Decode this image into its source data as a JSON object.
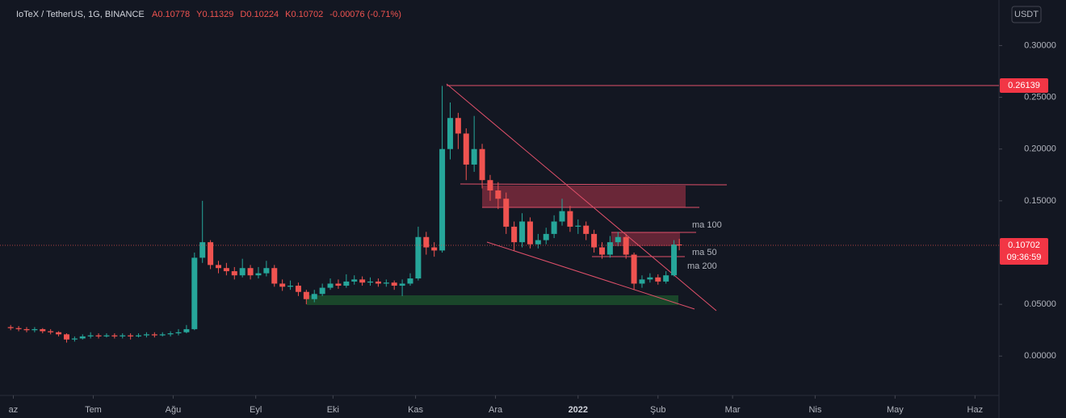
{
  "chart_data": {
    "type": "candlestick",
    "symbol": "IoTeX / TetherUS, 1G, BINANCE",
    "legend_values": [
      "A0.10778",
      "Y0.11329",
      "D0.10224",
      "K0.10702",
      "-0.00076 (-0.71%)"
    ],
    "currency": "USDT",
    "annotations": [
      "ma 100",
      "ma 50",
      "ma 200"
    ],
    "up_color": "#26a69a",
    "down_color": "#ef5350",
    "x": [
      0,
      3,
      6,
      9,
      12,
      15,
      18,
      21,
      24,
      27,
      30,
      33,
      36,
      39,
      42,
      45,
      48,
      51,
      54,
      57,
      60,
      63,
      66,
      69,
      72,
      75,
      78,
      81,
      84,
      87,
      90,
      93,
      96,
      99,
      102,
      105,
      108,
      111,
      114,
      117,
      120,
      123,
      126,
      129,
      132,
      135,
      138,
      141,
      144,
      147,
      150,
      153,
      156,
      159,
      162,
      165,
      168,
      171,
      174,
      177,
      180,
      183,
      186,
      189,
      192,
      195,
      198,
      201,
      204,
      207,
      210,
      213,
      216,
      219,
      222,
      225,
      228,
      231,
      234,
      237,
      240,
      243,
      246,
      249,
      251
    ],
    "open": [
      0.028,
      0.027,
      0.026,
      0.025,
      0.026,
      0.024,
      0.023,
      0.021,
      0.016,
      0.017,
      0.019,
      0.02,
      0.019,
      0.02,
      0.019,
      0.02,
      0.019,
      0.02,
      0.021,
      0.02,
      0.021,
      0.022,
      0.023,
      0.026,
      0.095,
      0.11,
      0.088,
      0.085,
      0.082,
      0.078,
      0.085,
      0.078,
      0.08,
      0.085,
      0.07,
      0.067,
      0.068,
      0.062,
      0.055,
      0.06,
      0.066,
      0.07,
      0.068,
      0.072,
      0.074,
      0.071,
      0.072,
      0.07,
      0.071,
      0.068,
      0.07,
      0.075,
      0.115,
      0.105,
      0.102,
      0.2,
      0.23,
      0.215,
      0.185,
      0.2,
      0.17,
      0.16,
      0.152,
      0.125,
      0.11,
      0.13,
      0.108,
      0.112,
      0.118,
      0.13,
      0.14,
      0.125,
      0.126,
      0.118,
      0.105,
      0.098,
      0.11,
      0.115,
      0.098,
      0.07,
      0.074,
      0.076,
      0.072,
      0.078,
      0.10778
    ],
    "high": [
      0.03,
      0.029,
      0.028,
      0.028,
      0.027,
      0.026,
      0.024,
      0.022,
      0.019,
      0.021,
      0.023,
      0.022,
      0.022,
      0.022,
      0.022,
      0.022,
      0.022,
      0.023,
      0.023,
      0.023,
      0.024,
      0.026,
      0.03,
      0.1,
      0.15,
      0.112,
      0.092,
      0.09,
      0.086,
      0.094,
      0.088,
      0.086,
      0.092,
      0.088,
      0.074,
      0.073,
      0.071,
      0.064,
      0.064,
      0.07,
      0.075,
      0.074,
      0.079,
      0.078,
      0.077,
      0.076,
      0.075,
      0.074,
      0.073,
      0.074,
      0.08,
      0.125,
      0.12,
      0.11,
      0.261,
      0.245,
      0.235,
      0.22,
      0.232,
      0.205,
      0.175,
      0.168,
      0.158,
      0.13,
      0.138,
      0.134,
      0.118,
      0.124,
      0.136,
      0.152,
      0.145,
      0.132,
      0.13,
      0.122,
      0.11,
      0.116,
      0.12,
      0.118,
      0.1,
      0.078,
      0.08,
      0.079,
      0.082,
      0.112,
      0.11329
    ],
    "low": [
      0.025,
      0.024,
      0.023,
      0.023,
      0.022,
      0.021,
      0.019,
      0.013,
      0.014,
      0.016,
      0.017,
      0.017,
      0.018,
      0.017,
      0.017,
      0.016,
      0.018,
      0.018,
      0.018,
      0.019,
      0.019,
      0.02,
      0.022,
      0.025,
      0.09,
      0.084,
      0.08,
      0.078,
      0.074,
      0.076,
      0.074,
      0.075,
      0.077,
      0.067,
      0.063,
      0.064,
      0.058,
      0.05,
      0.052,
      0.058,
      0.064,
      0.065,
      0.066,
      0.069,
      0.068,
      0.068,
      0.067,
      0.067,
      0.064,
      0.058,
      0.068,
      0.073,
      0.098,
      0.096,
      0.1,
      0.19,
      0.2,
      0.17,
      0.178,
      0.162,
      0.15,
      0.142,
      0.118,
      0.102,
      0.105,
      0.104,
      0.104,
      0.108,
      0.114,
      0.126,
      0.12,
      0.118,
      0.112,
      0.1,
      0.094,
      0.095,
      0.106,
      0.094,
      0.064,
      0.066,
      0.071,
      0.069,
      0.07,
      0.077,
      0.10224
    ],
    "close": [
      0.027,
      0.026,
      0.025,
      0.026,
      0.024,
      0.023,
      0.021,
      0.016,
      0.017,
      0.019,
      0.02,
      0.019,
      0.02,
      0.019,
      0.02,
      0.019,
      0.02,
      0.021,
      0.02,
      0.021,
      0.022,
      0.023,
      0.026,
      0.095,
      0.11,
      0.088,
      0.085,
      0.082,
      0.078,
      0.085,
      0.078,
      0.08,
      0.085,
      0.07,
      0.067,
      0.068,
      0.062,
      0.055,
      0.06,
      0.066,
      0.07,
      0.068,
      0.072,
      0.074,
      0.071,
      0.072,
      0.07,
      0.071,
      0.068,
      0.07,
      0.075,
      0.115,
      0.105,
      0.102,
      0.2,
      0.23,
      0.215,
      0.185,
      0.2,
      0.17,
      0.16,
      0.152,
      0.125,
      0.11,
      0.13,
      0.108,
      0.112,
      0.118,
      0.13,
      0.14,
      0.125,
      0.126,
      0.118,
      0.105,
      0.098,
      0.11,
      0.115,
      0.098,
      0.07,
      0.074,
      0.076,
      0.072,
      0.078,
      0.10778,
      0.10702
    ],
    "xlim": [
      -4,
      371
    ],
    "xticks": [
      {
        "value": 1,
        "label": "az"
      },
      {
        "value": 31,
        "label": "Tem"
      },
      {
        "value": 61,
        "label": "Ağu"
      },
      {
        "value": 92,
        "label": "Eyl"
      },
      {
        "value": 121,
        "label": "Eki"
      },
      {
        "value": 152,
        "label": "Kas"
      },
      {
        "value": 182,
        "label": "Ara"
      },
      {
        "value": 213,
        "label": "2022"
      },
      {
        "value": 243,
        "label": "Şub"
      },
      {
        "value": 271,
        "label": "Mar"
      },
      {
        "value": 302,
        "label": "Nis"
      },
      {
        "value": 332,
        "label": "May"
      },
      {
        "value": 362,
        "label": "Haz"
      }
    ],
    "ylim": [
      -0.038,
      0.344
    ],
    "yticks": [
      {
        "value": 0,
        "label": "0.00000"
      },
      {
        "value": 0.05,
        "label": "0.05000"
      },
      {
        "value": 0.15,
        "label": "0.15000"
      },
      {
        "value": 0.2,
        "label": "0.20000"
      },
      {
        "value": 0.25,
        "label": "0.25000"
      },
      {
        "value": 0.3,
        "label": "0.30000"
      }
    ],
    "price_line": 0.26139,
    "last_price": 0.10702,
    "countdown": "09:36:59"
  }
}
